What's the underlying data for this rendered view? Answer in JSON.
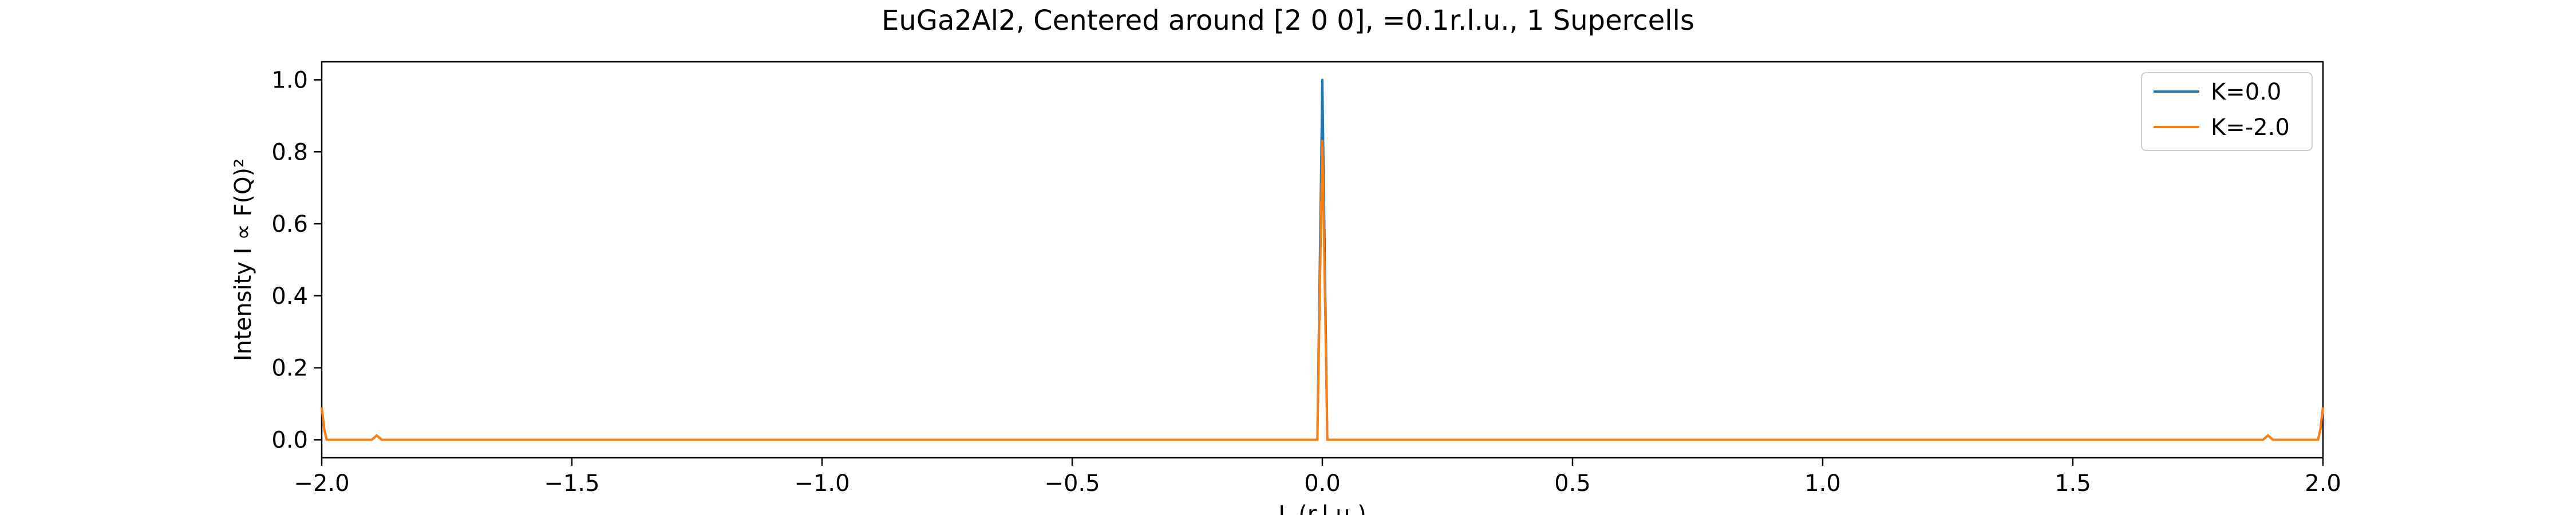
{
  "chart_data": {
    "type": "line",
    "title": "EuGa2Al2, Centered around [2 0 0], =0.1r.l.u., 1 Supercells",
    "xlabel": "L (r.l.u.)",
    "ylabel": "Intensity I ∝ F(Q)²",
    "xlim": [
      -2.0,
      2.0
    ],
    "ylim": [
      -0.05,
      1.05
    ],
    "xticks": [
      -2.0,
      -1.5,
      -1.0,
      -0.5,
      0.0,
      0.5,
      1.0,
      1.5,
      2.0
    ],
    "xtick_labels": [
      "−2.0",
      "−1.5",
      "−1.0",
      "−0.5",
      "0.0",
      "0.5",
      "1.0",
      "1.5",
      "2.0"
    ],
    "yticks": [
      0.0,
      0.2,
      0.4,
      0.6,
      0.8,
      1.0
    ],
    "ytick_labels": [
      "0.0",
      "0.2",
      "0.4",
      "0.6",
      "0.8",
      "1.0"
    ],
    "grid": false,
    "legend_position": "top-right",
    "series": [
      {
        "name": "K=0.0",
        "color": "#1f77b4",
        "x": [
          -2.0,
          -1.995,
          -1.99,
          -1.9,
          -1.89,
          -1.88,
          -0.01,
          0.0,
          0.01,
          1.88,
          1.89,
          1.9,
          1.99,
          1.995,
          2.0
        ],
        "y": [
          0.09,
          0.03,
          0.0,
          0.0,
          0.012,
          0.0,
          0.0,
          1.0,
          0.0,
          0.0,
          0.012,
          0.0,
          0.0,
          0.03,
          0.09
        ]
      },
      {
        "name": "K=-2.0",
        "color": "#ff7f0e",
        "x": [
          -2.0,
          -1.995,
          -1.99,
          -1.9,
          -1.89,
          -1.88,
          -0.01,
          0.0,
          0.01,
          1.88,
          1.89,
          1.9,
          1.99,
          1.995,
          2.0
        ],
        "y": [
          0.09,
          0.03,
          0.0,
          0.0,
          0.012,
          0.0,
          0.0,
          0.83,
          0.0,
          0.0,
          0.012,
          0.0,
          0.0,
          0.03,
          0.09
        ]
      }
    ]
  }
}
